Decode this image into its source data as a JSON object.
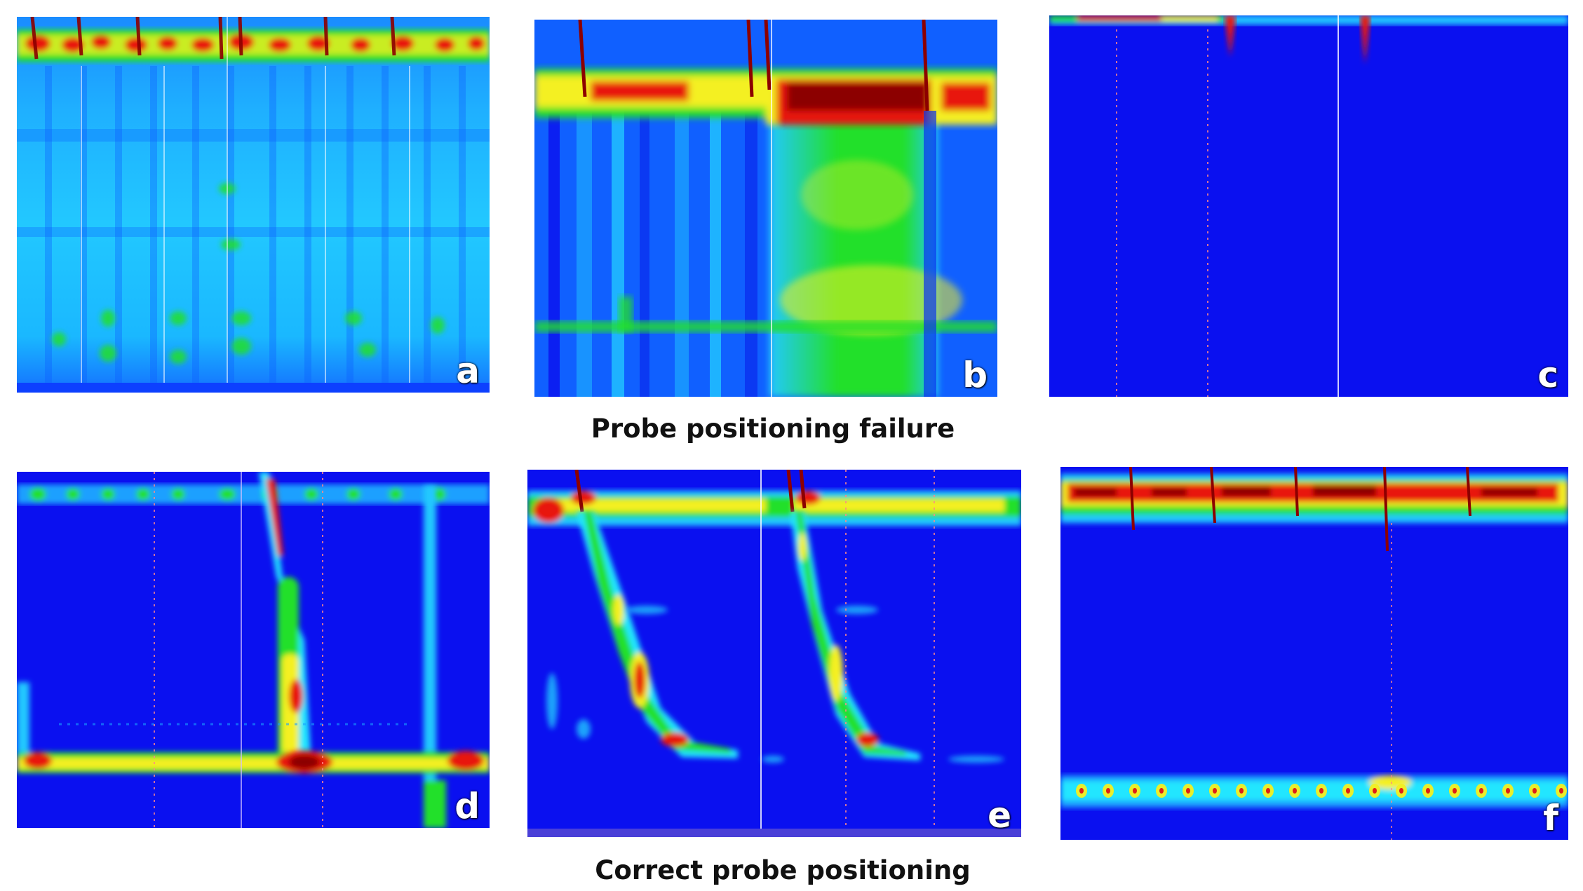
{
  "figure": {
    "captions": {
      "top": "Probe positioning failure",
      "bottom": "Correct probe positioning"
    },
    "panels": [
      {
        "id": "a",
        "label": "a"
      },
      {
        "id": "b",
        "label": "b"
      },
      {
        "id": "c",
        "label": "c"
      },
      {
        "id": "d",
        "label": "d"
      },
      {
        "id": "e",
        "label": "e"
      },
      {
        "id": "f",
        "label": "f"
      }
    ],
    "colormap": {
      "low": "#0a10f0",
      "light_blue": "#1aa0ff",
      "cyan": "#22e6ff",
      "green": "#22e02a",
      "yellow": "#f4f020",
      "red": "#e8140a",
      "dark_red": "#8c0000"
    }
  }
}
